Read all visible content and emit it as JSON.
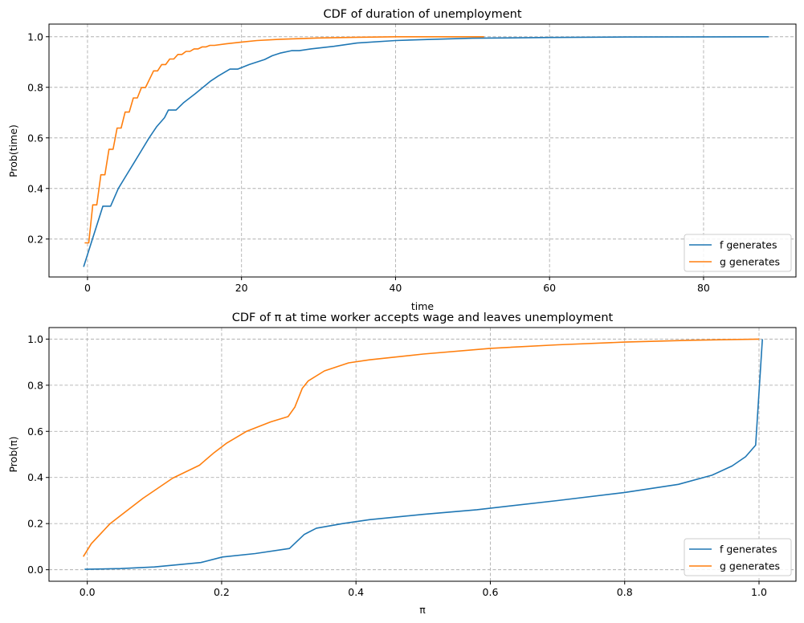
{
  "chart_data": [
    {
      "type": "line",
      "title": "CDF of duration of unemployment",
      "xlabel": "time",
      "ylabel": "Prob(time)",
      "xlim": [
        -5,
        92
      ],
      "ylim": [
        0.05,
        1.05
      ],
      "xticks": [
        0,
        20,
        40,
        60,
        80
      ],
      "xtick_labels": [
        "0",
        "20",
        "40",
        "60",
        "80"
      ],
      "yticks": [
        0.2,
        0.4,
        0.6,
        0.8,
        1.0
      ],
      "ytick_labels": [
        "0.2",
        "0.4",
        "0.6",
        "0.8",
        "1.0"
      ],
      "grid": true,
      "legend": "lower-right",
      "series": [
        {
          "name": "f generates",
          "color": "#1f77b4",
          "points": [
            [
              -0.5,
              0.09
            ],
            [
              2,
              0.33
            ],
            [
              3,
              0.33
            ],
            [
              4,
              0.4
            ],
            [
              5,
              0.45
            ],
            [
              6,
              0.5
            ],
            [
              7,
              0.55
            ],
            [
              8,
              0.6
            ],
            [
              9,
              0.645
            ],
            [
              10,
              0.68
            ],
            [
              10.5,
              0.71
            ],
            [
              11.5,
              0.71
            ],
            [
              12.5,
              0.74
            ],
            [
              14,
              0.775
            ],
            [
              15,
              0.8
            ],
            [
              16,
              0.825
            ],
            [
              17,
              0.845
            ],
            [
              18.5,
              0.872
            ],
            [
              19.5,
              0.872
            ],
            [
              21,
              0.89
            ],
            [
              23,
              0.91
            ],
            [
              24,
              0.925
            ],
            [
              25,
              0.935
            ],
            [
              26.5,
              0.945
            ],
            [
              27.5,
              0.945
            ],
            [
              29,
              0.952
            ],
            [
              32,
              0.962
            ],
            [
              35,
              0.975
            ],
            [
              40,
              0.985
            ],
            [
              45,
              0.99
            ],
            [
              50,
              0.994
            ],
            [
              60,
              0.997
            ],
            [
              70,
              0.999
            ],
            [
              88.5,
              1.0
            ]
          ]
        },
        {
          "name": "g generates",
          "color": "#ff7f0e",
          "points": [
            [
              -0.37,
              0.185
            ],
            [
              0.16,
              0.185
            ],
            [
              0.68,
              0.335
            ],
            [
              1.21,
              0.335
            ],
            [
              1.74,
              0.454
            ],
            [
              2.26,
              0.454
            ],
            [
              2.79,
              0.555
            ],
            [
              3.32,
              0.555
            ],
            [
              3.84,
              0.639
            ],
            [
              4.37,
              0.639
            ],
            [
              4.89,
              0.702
            ],
            [
              5.42,
              0.702
            ],
            [
              5.95,
              0.758
            ],
            [
              6.47,
              0.758
            ],
            [
              7.0,
              0.799
            ],
            [
              7.53,
              0.799
            ],
            [
              8.58,
              0.865
            ],
            [
              9.1,
              0.865
            ],
            [
              9.63,
              0.89
            ],
            [
              10.16,
              0.89
            ],
            [
              10.68,
              0.912
            ],
            [
              11.21,
              0.912
            ],
            [
              11.74,
              0.93
            ],
            [
              12.26,
              0.93
            ],
            [
              12.79,
              0.942
            ],
            [
              13.3,
              0.942
            ],
            [
              13.84,
              0.952
            ],
            [
              14.37,
              0.952
            ],
            [
              14.9,
              0.96
            ],
            [
              15.4,
              0.96
            ],
            [
              15.9,
              0.966
            ],
            [
              16.5,
              0.966
            ],
            [
              18,
              0.972
            ],
            [
              20,
              0.979
            ],
            [
              22,
              0.985
            ],
            [
              25,
              0.99
            ],
            [
              30,
              0.995
            ],
            [
              35,
              0.998
            ],
            [
              40,
              1.0
            ],
            [
              51.5,
              1.0
            ]
          ]
        }
      ]
    },
    {
      "type": "line",
      "title": "CDF of π at time worker accepts wage and leaves unemployment",
      "xlabel": "π",
      "ylabel": "Prob(π)",
      "xlim": [
        -0.057,
        1.055
      ],
      "ylim": [
        -0.05,
        1.05
      ],
      "xticks": [
        0.0,
        0.2,
        0.4,
        0.6,
        0.8,
        1.0
      ],
      "xtick_labels": [
        "0.0",
        "0.2",
        "0.4",
        "0.6",
        "0.8",
        "1.0"
      ],
      "yticks": [
        0.0,
        0.2,
        0.4,
        0.6,
        0.8,
        1.0
      ],
      "ytick_labels": [
        "0.0",
        "0.2",
        "0.4",
        "0.6",
        "0.8",
        "1.0"
      ],
      "grid": true,
      "legend": "lower-right",
      "series": [
        {
          "name": "f generates",
          "color": "#1f77b4",
          "points": [
            [
              -0.004,
              0.002
            ],
            [
              0.05,
              0.005
            ],
            [
              0.1,
              0.012
            ],
            [
              0.169,
              0.031
            ],
            [
              0.201,
              0.055
            ],
            [
              0.25,
              0.07
            ],
            [
              0.301,
              0.092
            ],
            [
              0.323,
              0.153
            ],
            [
              0.341,
              0.18
            ],
            [
              0.38,
              0.2
            ],
            [
              0.42,
              0.217
            ],
            [
              0.5,
              0.24
            ],
            [
              0.58,
              0.26
            ],
            [
              0.7,
              0.3
            ],
            [
              0.8,
              0.335
            ],
            [
              0.88,
              0.37
            ],
            [
              0.93,
              0.41
            ],
            [
              0.96,
              0.45
            ],
            [
              0.98,
              0.49
            ],
            [
              0.995,
              0.54
            ],
            [
              1.005,
              1.0
            ]
          ]
        },
        {
          "name": "g generates",
          "color": "#ff7f0e",
          "points": [
            [
              -0.006,
              0.057
            ],
            [
              0.006,
              0.113
            ],
            [
              0.034,
              0.2
            ],
            [
              0.083,
              0.31
            ],
            [
              0.127,
              0.397
            ],
            [
              0.167,
              0.453
            ],
            [
              0.189,
              0.508
            ],
            [
              0.207,
              0.548
            ],
            [
              0.237,
              0.6
            ],
            [
              0.273,
              0.641
            ],
            [
              0.299,
              0.664
            ],
            [
              0.309,
              0.705
            ],
            [
              0.32,
              0.786
            ],
            [
              0.329,
              0.819
            ],
            [
              0.353,
              0.862
            ],
            [
              0.389,
              0.897
            ],
            [
              0.42,
              0.91
            ],
            [
              0.5,
              0.935
            ],
            [
              0.6,
              0.96
            ],
            [
              0.7,
              0.975
            ],
            [
              0.8,
              0.987
            ],
            [
              0.9,
              0.995
            ],
            [
              1.0,
              1.0
            ]
          ]
        }
      ]
    }
  ]
}
